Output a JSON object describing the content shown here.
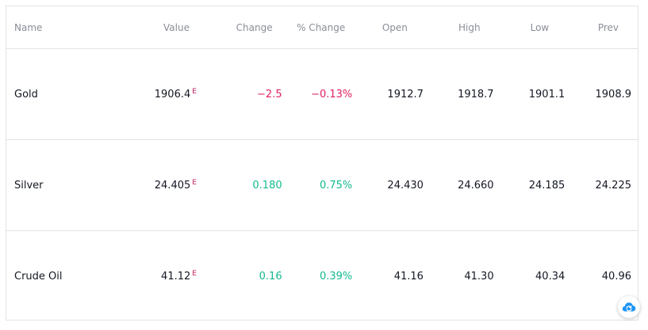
{
  "colors": {
    "negative": "#e0225e",
    "positive": "#12b98f",
    "extended_flag": "#c2185b",
    "header_text": "#8a8e97",
    "border": "#e1e3e6",
    "cloud_icon": "#2196f3"
  },
  "table": {
    "headers": {
      "name": "Name",
      "value": "Value",
      "change": "Change",
      "pct_change": "% Change",
      "open": "Open",
      "high": "High",
      "low": "Low",
      "prev": "Prev"
    },
    "rows": [
      {
        "name": "Gold",
        "value": "1906.4",
        "flag": "E",
        "change": "−2.5",
        "pct_change": "−0.13%",
        "direction": "negative",
        "open": "1912.7",
        "high": "1918.7",
        "low": "1901.1",
        "prev": "1908.9"
      },
      {
        "name": "Silver",
        "value": "24.405",
        "flag": "E",
        "change": "0.180",
        "pct_change": "0.75%",
        "direction": "positive",
        "open": "24.430",
        "high": "24.660",
        "low": "24.185",
        "prev": "24.225"
      },
      {
        "name": "Crude Oil",
        "value": "41.12",
        "flag": "E",
        "change": "0.16",
        "pct_change": "0.39%",
        "direction": "positive",
        "open": "41.16",
        "high": "41.30",
        "low": "40.34",
        "prev": "40.96"
      }
    ]
  },
  "badge": {
    "icon": "cloud-sync-icon"
  }
}
